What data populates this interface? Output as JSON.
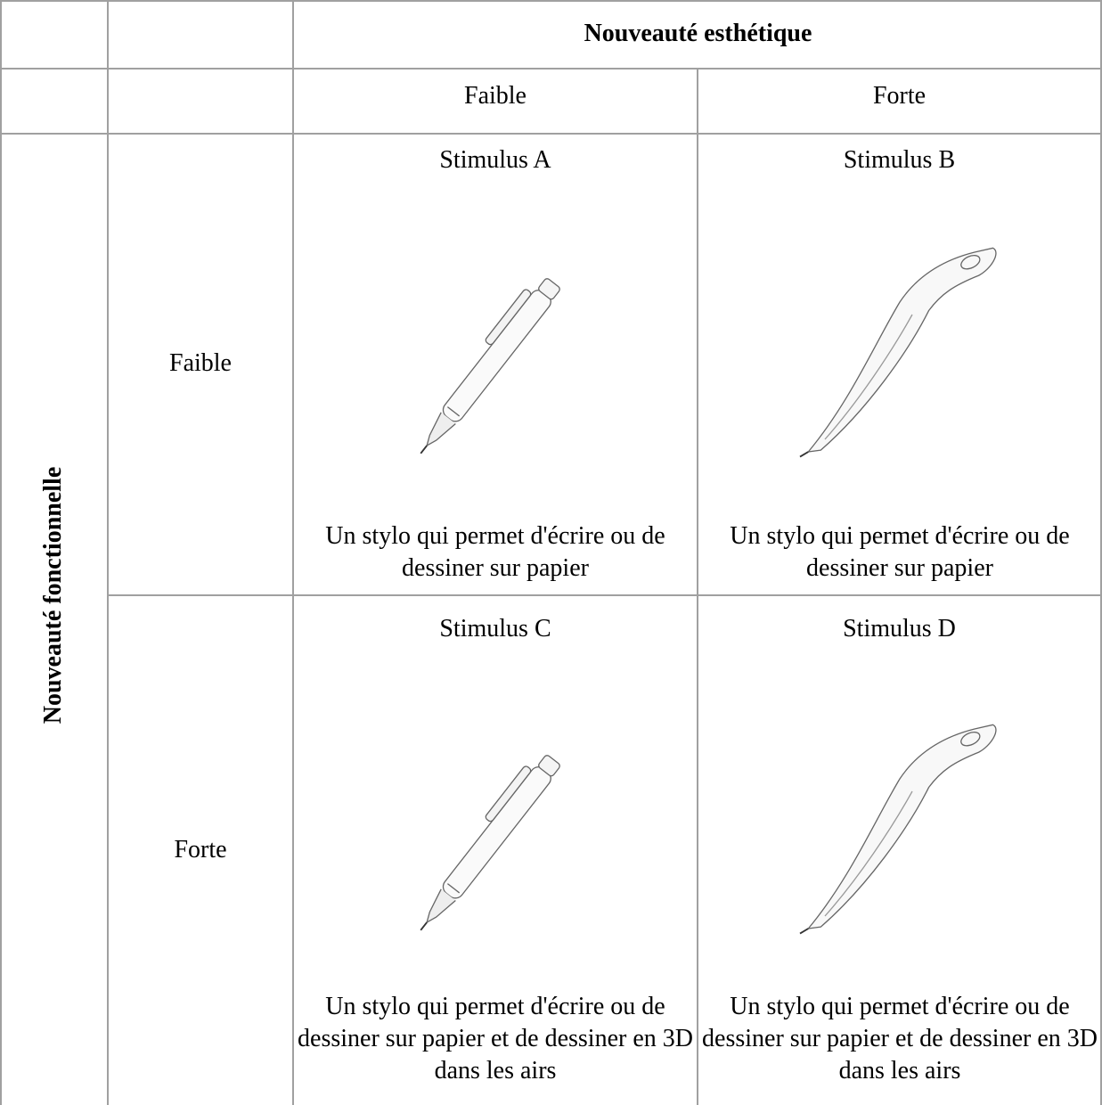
{
  "header": {
    "title": "Nouveauté esthétique",
    "columns": [
      "Faible",
      "Forte"
    ]
  },
  "row_header": "Nouveauté fonctionnelle",
  "rows": [
    {
      "label": "Faible",
      "cells": [
        {
          "stimulus": "Stimulus A",
          "description": "Un stylo qui permet d'écrire ou de dessiner sur papier"
        },
        {
          "stimulus": "Stimulus B",
          "description": "Un stylo qui permet d'écrire ou de dessiner sur papier"
        }
      ]
    },
    {
      "label": "Forte",
      "cells": [
        {
          "stimulus": "Stimulus C",
          "description": "Un stylo qui permet d'écrire ou de dessiner sur papier et de dessiner en 3D dans les airs"
        },
        {
          "stimulus": "Stimulus D",
          "description": "Un stylo qui permet d'écrire ou de dessiner sur papier et de dessiner en 3D dans les airs"
        }
      ]
    }
  ]
}
